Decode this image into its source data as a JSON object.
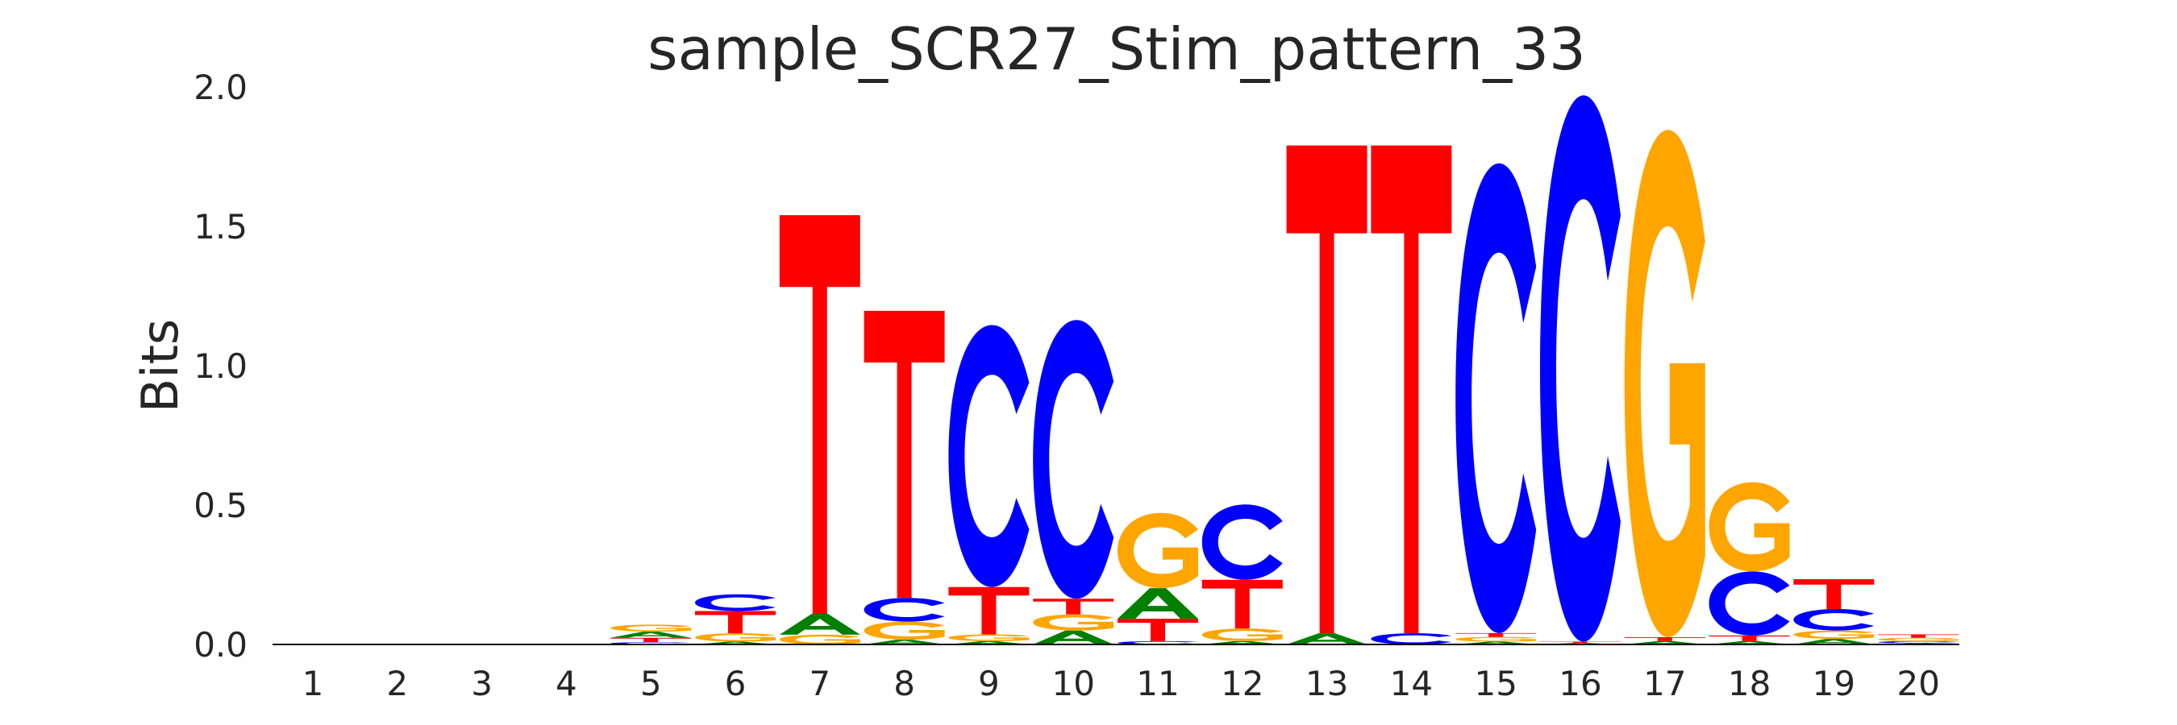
{
  "chart_data": {
    "type": "sequence_logo",
    "title": "sample_SCR27_Stim_pattern_33",
    "xlabel": "",
    "ylabel": "Bits",
    "ylim": [
      0,
      2.0
    ],
    "yticks": [
      "0.0",
      "0.5",
      "1.0",
      "1.5",
      "2.0"
    ],
    "ytick_values": [
      0,
      0.5,
      1.0,
      1.5,
      2.0
    ],
    "grid": false,
    "colors": {
      "A": "#008000",
      "C": "#0000ff",
      "G": "#ffa500",
      "T": "#ff0000"
    },
    "positions": [
      {
        "label": "1",
        "letters": []
      },
      {
        "label": "2",
        "letters": []
      },
      {
        "label": "3",
        "letters": []
      },
      {
        "label": "4",
        "letters": []
      },
      {
        "label": "5",
        "letters": [
          {
            "base": "C",
            "bits": 0.008
          },
          {
            "base": "T",
            "bits": 0.016
          },
          {
            "base": "A",
            "bits": 0.022
          },
          {
            "base": "G",
            "bits": 0.025
          }
        ]
      },
      {
        "label": "6",
        "letters": [
          {
            "base": "A",
            "bits": 0.01
          },
          {
            "base": "G",
            "bits": 0.03
          },
          {
            "base": "T",
            "bits": 0.08
          },
          {
            "base": "C",
            "bits": 0.06
          }
        ]
      },
      {
        "label": "7",
        "letters": [
          {
            "base": "G",
            "bits": 0.035
          },
          {
            "base": "A",
            "bits": 0.075
          },
          {
            "base": "T",
            "bits": 1.43
          }
        ]
      },
      {
        "label": "8",
        "letters": [
          {
            "base": "A",
            "bits": 0.017
          },
          {
            "base": "G",
            "bits": 0.065
          },
          {
            "base": "C",
            "bits": 0.085
          },
          {
            "base": "T",
            "bits": 1.03
          }
        ]
      },
      {
        "label": "9",
        "letters": [
          {
            "base": "A",
            "bits": 0.012
          },
          {
            "base": "G",
            "bits": 0.024
          },
          {
            "base": "T",
            "bits": 0.17
          },
          {
            "base": "C",
            "bits": 0.94
          }
        ]
      },
      {
        "label": "10",
        "letters": [
          {
            "base": "A",
            "bits": 0.05
          },
          {
            "base": "G",
            "bits": 0.058
          },
          {
            "base": "T",
            "bits": 0.056
          },
          {
            "base": "C",
            "bits": 1.0
          }
        ]
      },
      {
        "label": "11",
        "letters": [
          {
            "base": "C",
            "bits": 0.012
          },
          {
            "base": "T",
            "bits": 0.08
          },
          {
            "base": "A",
            "bits": 0.11
          },
          {
            "base": "G",
            "bits": 0.27
          }
        ]
      },
      {
        "label": "12",
        "letters": [
          {
            "base": "A",
            "bits": 0.012
          },
          {
            "base": "G",
            "bits": 0.045
          },
          {
            "base": "T",
            "bits": 0.175
          },
          {
            "base": "C",
            "bits": 0.27
          }
        ]
      },
      {
        "label": "13",
        "letters": [
          {
            "base": "A",
            "bits": 0.04
          },
          {
            "base": "T",
            "bits": 1.75
          }
        ]
      },
      {
        "label": "14",
        "letters": [
          {
            "base": "C",
            "bits": 0.04
          },
          {
            "base": "T",
            "bits": 1.75
          }
        ]
      },
      {
        "label": "15",
        "letters": [
          {
            "base": "A",
            "bits": 0.01
          },
          {
            "base": "G",
            "bits": 0.017
          },
          {
            "base": "T",
            "bits": 0.014
          },
          {
            "base": "C",
            "bits": 1.685
          }
        ]
      },
      {
        "label": "16",
        "letters": [
          {
            "base": "A",
            "bits": 0.005
          },
          {
            "base": "T",
            "bits": 0.005
          },
          {
            "base": "C",
            "bits": 1.96
          }
        ]
      },
      {
        "label": "17",
        "letters": [
          {
            "base": "A",
            "bits": 0.012
          },
          {
            "base": "T",
            "bits": 0.014
          },
          {
            "base": "G",
            "bits": 1.82
          }
        ]
      },
      {
        "label": "18",
        "letters": [
          {
            "base": "A",
            "bits": 0.012
          },
          {
            "base": "T",
            "bits": 0.02
          },
          {
            "base": "C",
            "bits": 0.23
          },
          {
            "base": "G",
            "bits": 0.32
          }
        ]
      },
      {
        "label": "19",
        "letters": [
          {
            "base": "A",
            "bits": 0.02
          },
          {
            "base": "G",
            "bits": 0.03
          },
          {
            "base": "C",
            "bits": 0.077
          },
          {
            "base": "T",
            "bits": 0.107
          }
        ]
      },
      {
        "label": "20",
        "letters": [
          {
            "base": "A",
            "bits": 0.004
          },
          {
            "base": "C",
            "bits": 0.008
          },
          {
            "base": "G",
            "bits": 0.012
          },
          {
            "base": "T",
            "bits": 0.012
          }
        ]
      }
    ]
  }
}
